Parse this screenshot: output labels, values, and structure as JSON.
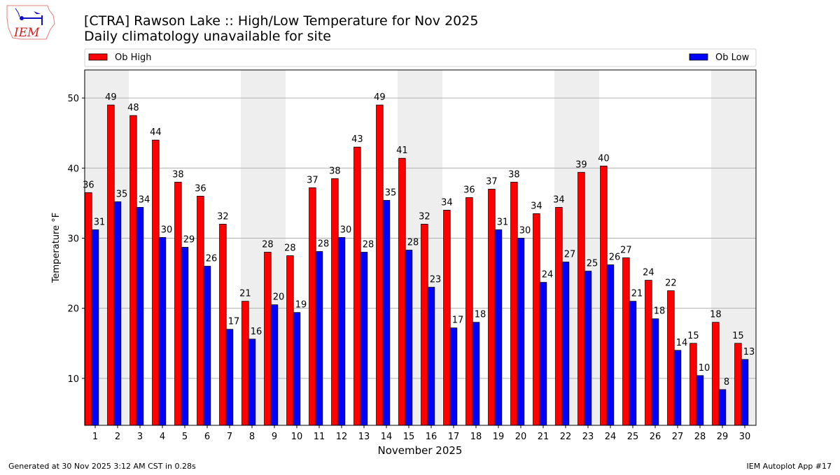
{
  "logo_text": "IEM",
  "footer": {
    "left": "Generated at 30 Nov 2025 3:12 AM CST in 0.28s",
    "right": "IEM Autoplot App #17"
  },
  "colors": {
    "high": "#ff0000",
    "low": "#0000ff",
    "weekend": "#eeeeee",
    "grid": "#b0b0b0"
  },
  "chart_data": {
    "type": "bar",
    "title": "[CTRA] Rawson Lake :: High/Low Temperature for Nov 2025",
    "subtitle": "Daily climatology unavailable for site",
    "xlabel": "November 2025",
    "ylabel": "Temperature °F",
    "ylim": [
      3.3,
      54
    ],
    "yticks": [
      10,
      20,
      30,
      40,
      50
    ],
    "grid": true,
    "legend_placement": "top, above plot",
    "weekend_shaded_days": [
      1,
      2,
      8,
      9,
      15,
      16,
      22,
      23,
      29,
      30
    ],
    "categories": [
      "1",
      "2",
      "3",
      "4",
      "5",
      "6",
      "7",
      "8",
      "9",
      "10",
      "11",
      "12",
      "13",
      "14",
      "15",
      "16",
      "17",
      "18",
      "19",
      "20",
      "21",
      "22",
      "23",
      "24",
      "25",
      "26",
      "27",
      "28",
      "29",
      "30"
    ],
    "series": [
      {
        "name": "Ob High",
        "values": [
          36.5,
          49,
          47.5,
          44,
          38,
          36,
          32,
          21,
          28,
          27.5,
          37.2,
          38.5,
          43,
          49,
          41.4,
          32,
          34,
          35.8,
          37,
          38,
          33.5,
          34.4,
          39.4,
          40.3,
          27.2,
          24,
          22.5,
          15,
          18,
          15
        ],
        "labels": [
          "36",
          "49",
          "48",
          "44",
          "38",
          "36",
          "32",
          "21",
          "28",
          "28",
          "37",
          "38",
          "43",
          "49",
          "41",
          "32",
          "34",
          "36",
          "37",
          "38",
          "34",
          "34",
          "39",
          "40",
          "27",
          "24",
          "22",
          "15",
          "18",
          "15"
        ]
      },
      {
        "name": "Ob Low",
        "values": [
          31.2,
          35.2,
          34.4,
          30.1,
          28.7,
          26,
          17,
          15.6,
          20.5,
          19.4,
          28.1,
          30.1,
          28,
          35.4,
          28.3,
          23,
          17.2,
          18,
          31.2,
          30,
          23.7,
          26.6,
          25.3,
          26.2,
          21,
          18.5,
          14,
          10.4,
          8.4,
          12.7
        ],
        "labels": [
          "31",
          "35",
          "34",
          "30",
          "29",
          "26",
          "17",
          "16",
          "20",
          "19",
          "28",
          "30",
          "28",
          "35",
          "28",
          "23",
          "17",
          "18",
          "31",
          "30",
          "24",
          "27",
          "25",
          "26",
          "21",
          "18",
          "14",
          "10",
          "8",
          "13"
        ]
      }
    ]
  }
}
